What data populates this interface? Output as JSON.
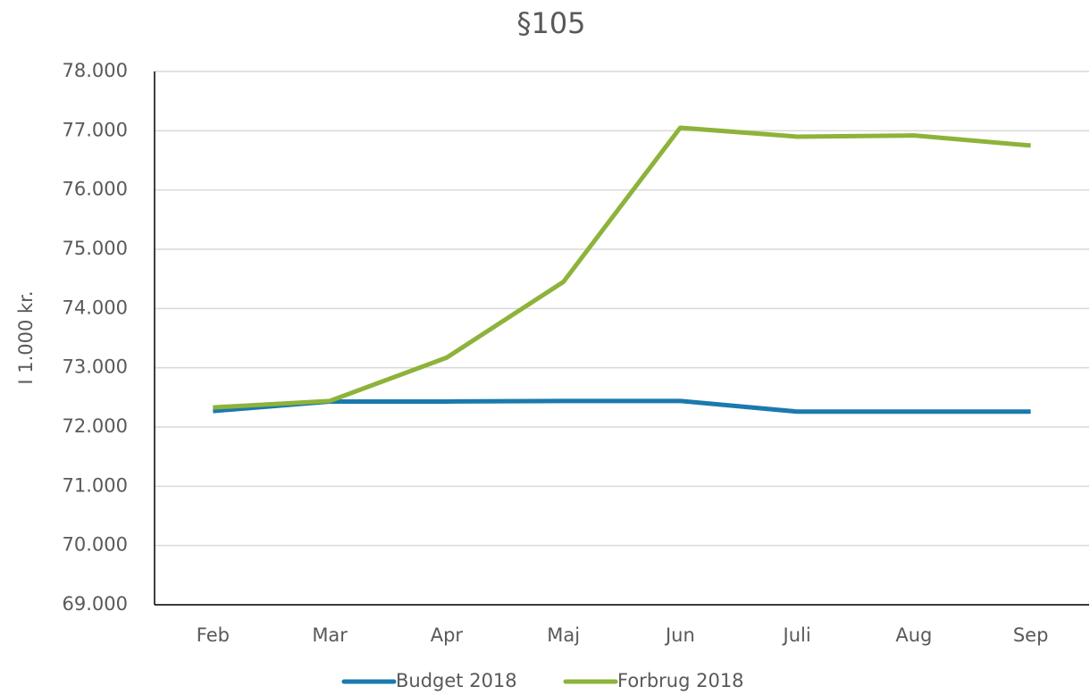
{
  "chart_data": {
    "type": "line",
    "title": "§105",
    "y_label": "I 1.000 kr.",
    "categories": [
      "Feb",
      "Mar",
      "Apr",
      "Maj",
      "Jun",
      "Juli",
      "Aug",
      "Sep"
    ],
    "series": [
      {
        "name": "Budget 2018",
        "color": "#1a7aad",
        "values": [
          72270,
          72430,
          72430,
          72440,
          72440,
          72260,
          72260,
          72260
        ]
      },
      {
        "name": "Forbrug 2018",
        "color": "#8db33a",
        "values": [
          72330,
          72440,
          73170,
          74450,
          77050,
          76900,
          76920,
          76750
        ]
      }
    ],
    "ylim": [
      69000,
      78000
    ],
    "yticks": [
      {
        "value": 69000,
        "label": "69.000"
      },
      {
        "value": 70000,
        "label": "70.000"
      },
      {
        "value": 71000,
        "label": "71.000"
      },
      {
        "value": 72000,
        "label": "72.000"
      },
      {
        "value": 73000,
        "label": "73.000"
      },
      {
        "value": 74000,
        "label": "74.000"
      },
      {
        "value": 75000,
        "label": "75.000"
      },
      {
        "value": 76000,
        "label": "76.000"
      },
      {
        "value": 77000,
        "label": "77.000"
      },
      {
        "value": 78000,
        "label": "78.000"
      }
    ],
    "grid": true,
    "legend": "bottom"
  }
}
